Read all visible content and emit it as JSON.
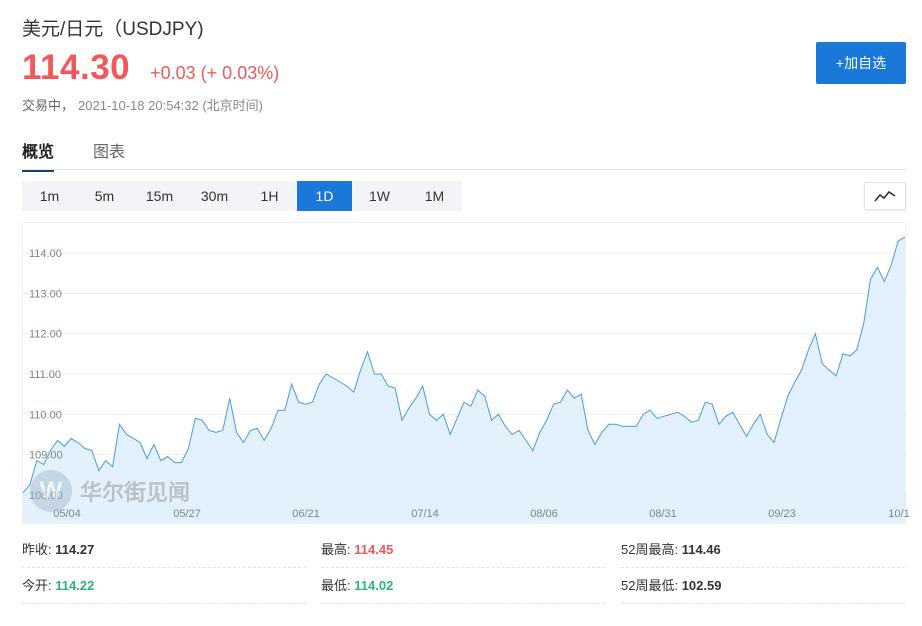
{
  "header": {
    "title": "美元/日元（USDJPY)",
    "price": "114.30",
    "change": "+0.03 (+ 0.03%)",
    "status_label": "交易中，",
    "timestamp": "2021-10-18 20:54:32 (北京时间)",
    "add_button": "+加自选"
  },
  "tabs": [
    {
      "label": "概览",
      "active": true
    },
    {
      "label": "图表",
      "active": false
    }
  ],
  "ranges": [
    {
      "label": "1m",
      "active": false
    },
    {
      "label": "5m",
      "active": false
    },
    {
      "label": "15m",
      "active": false
    },
    {
      "label": "30m",
      "active": false
    },
    {
      "label": "1H",
      "active": false
    },
    {
      "label": "1D",
      "active": true
    },
    {
      "label": "1W",
      "active": false
    },
    {
      "label": "1M",
      "active": false
    }
  ],
  "chart_type_icon": "line-chart-icon",
  "watermark": {
    "logo": "W",
    "text": "华尔街见闻"
  },
  "colors": {
    "accent": "#1a78d9",
    "up": "#f0585c",
    "down": "#2db37c",
    "line": "#4a9be0",
    "fill": "#e3f1fc"
  },
  "chart_data": {
    "type": "area",
    "y_ticks": [
      "114.00",
      "113.00",
      "112.00",
      "111.00",
      "110.00",
      "109.00",
      "108.00"
    ],
    "x_ticks": [
      "05/04",
      "05/27",
      "06/21",
      "07/14",
      "08/06",
      "08/31",
      "09/23",
      "10/1"
    ],
    "ylim": [
      107.3,
      114.6
    ],
    "grid": true,
    "values": [
      108.05,
      108.25,
      108.85,
      108.75,
      109.1,
      109.35,
      109.2,
      109.4,
      109.3,
      109.15,
      109.1,
      108.6,
      108.85,
      108.7,
      109.75,
      109.5,
      109.4,
      109.3,
      108.9,
      109.25,
      108.85,
      108.95,
      108.8,
      108.8,
      109.15,
      109.9,
      109.85,
      109.6,
      109.55,
      109.6,
      110.4,
      109.55,
      109.3,
      109.6,
      109.65,
      109.35,
      109.65,
      110.1,
      110.1,
      110.75,
      110.3,
      110.25,
      110.3,
      110.75,
      111.0,
      110.9,
      110.8,
      110.7,
      110.55,
      111.1,
      111.55,
      111.0,
      111.0,
      110.7,
      110.65,
      109.85,
      110.15,
      110.4,
      110.7,
      110.0,
      109.85,
      110.0,
      109.5,
      109.9,
      110.3,
      110.2,
      110.6,
      110.45,
      109.85,
      110.0,
      109.7,
      109.5,
      109.6,
      109.35,
      109.1,
      109.55,
      109.85,
      110.25,
      110.3,
      110.6,
      110.4,
      110.5,
      109.6,
      109.25,
      109.55,
      109.75,
      109.75,
      109.7,
      109.7,
      109.7,
      110.0,
      110.1,
      109.9,
      109.95,
      110.0,
      110.05,
      109.95,
      109.8,
      109.85,
      110.3,
      110.25,
      109.75,
      109.95,
      110.05,
      109.75,
      109.45,
      109.75,
      110.0,
      109.5,
      109.3,
      109.9,
      110.45,
      110.8,
      111.1,
      111.6,
      112.0,
      111.25,
      111.1,
      110.95,
      111.5,
      111.45,
      111.6,
      112.25,
      113.35,
      113.65,
      113.3,
      113.7,
      114.3,
      114.4
    ]
  },
  "stats": [
    {
      "label": "昨收:",
      "value": "114.27",
      "trend": "flat"
    },
    {
      "label": "最高:",
      "value": "114.45",
      "trend": "up"
    },
    {
      "label": "52周最高:",
      "value": "114.46",
      "trend": "flat"
    },
    {
      "label": "今开:",
      "value": "114.22",
      "trend": "down"
    },
    {
      "label": "最低:",
      "value": "114.02",
      "trend": "down"
    },
    {
      "label": "52周最低:",
      "value": "102.59",
      "trend": "flat"
    }
  ]
}
